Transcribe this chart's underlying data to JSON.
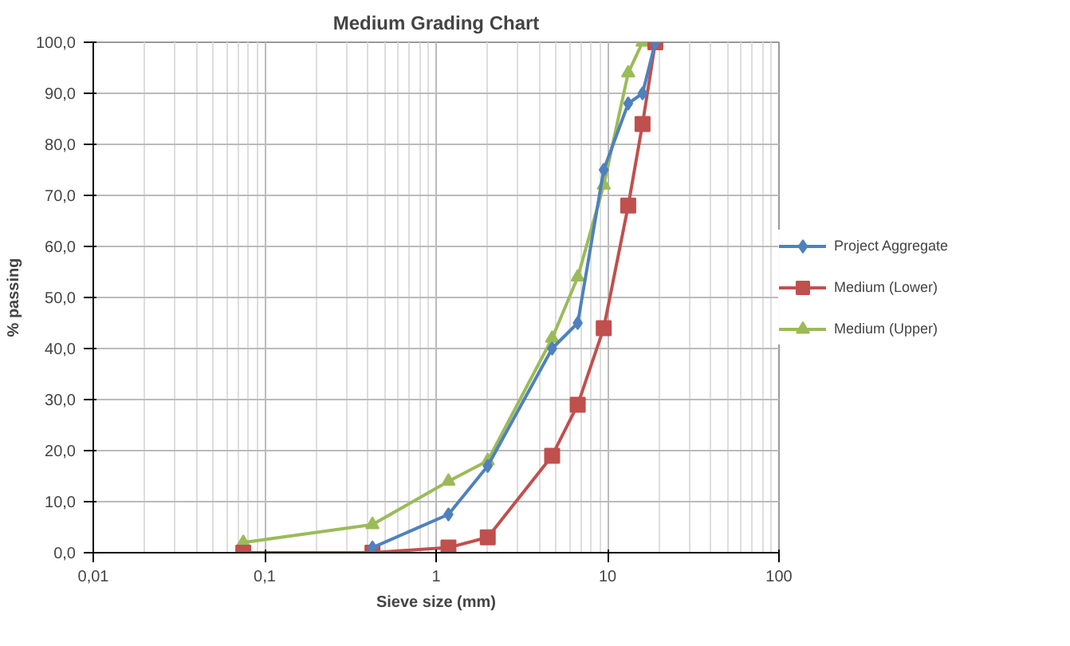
{
  "chart_data": {
    "type": "line",
    "title": "Medium Grading Chart",
    "xlabel": "Sieve size (mm)",
    "ylabel": "% passing",
    "log": "x",
    "grid": true,
    "legend": "right",
    "xlim": [
      0.01,
      100
    ],
    "xticks": [
      {
        "value": 0.01,
        "label": "0,01"
      },
      {
        "value": 0.1,
        "label": "0,1"
      },
      1,
      10,
      100
    ],
    "ylim": [
      0,
      100
    ],
    "yticks": [
      {
        "value": 0,
        "label": "0,0"
      },
      {
        "value": 10,
        "label": "10,0"
      },
      {
        "value": 20,
        "label": "20,0"
      },
      {
        "value": 30,
        "label": "30,0"
      },
      {
        "value": 40,
        "label": "40,0"
      },
      {
        "value": 50,
        "label": "50,0"
      },
      {
        "value": 60,
        "label": "60,0"
      },
      {
        "value": 70,
        "label": "70,0"
      },
      {
        "value": 80,
        "label": "80,0"
      },
      {
        "value": 90,
        "label": "90,0"
      },
      {
        "value": 100,
        "label": "100,0"
      }
    ],
    "series": [
      {
        "name": "Project Aggregate",
        "color": "#4f81bd",
        "marker": "diamond",
        "x": [
          0.425,
          1.18,
          2.0,
          4.75,
          6.7,
          9.5,
          13.2,
          16,
          19
        ],
        "values": [
          1,
          7.5,
          17,
          40,
          45,
          75,
          88,
          90,
          100
        ]
      },
      {
        "name": "Medium (Lower)",
        "color": "#c0504d",
        "marker": "square",
        "x": [
          0.075,
          0.425,
          1.18,
          2.0,
          4.75,
          6.7,
          9.5,
          13.2,
          16,
          19
        ],
        "values": [
          0,
          0,
          1,
          3,
          19,
          29,
          44,
          68,
          84,
          100
        ]
      },
      {
        "name": "Medium (Upper)",
        "color": "#9bbb59",
        "marker": "triangle",
        "x": [
          0.075,
          0.425,
          1.18,
          2.0,
          4.75,
          6.7,
          9.5,
          13.2,
          16,
          19
        ],
        "values": [
          2,
          5.5,
          14,
          18,
          42,
          54,
          72,
          94,
          100,
          100
        ]
      }
    ]
  }
}
